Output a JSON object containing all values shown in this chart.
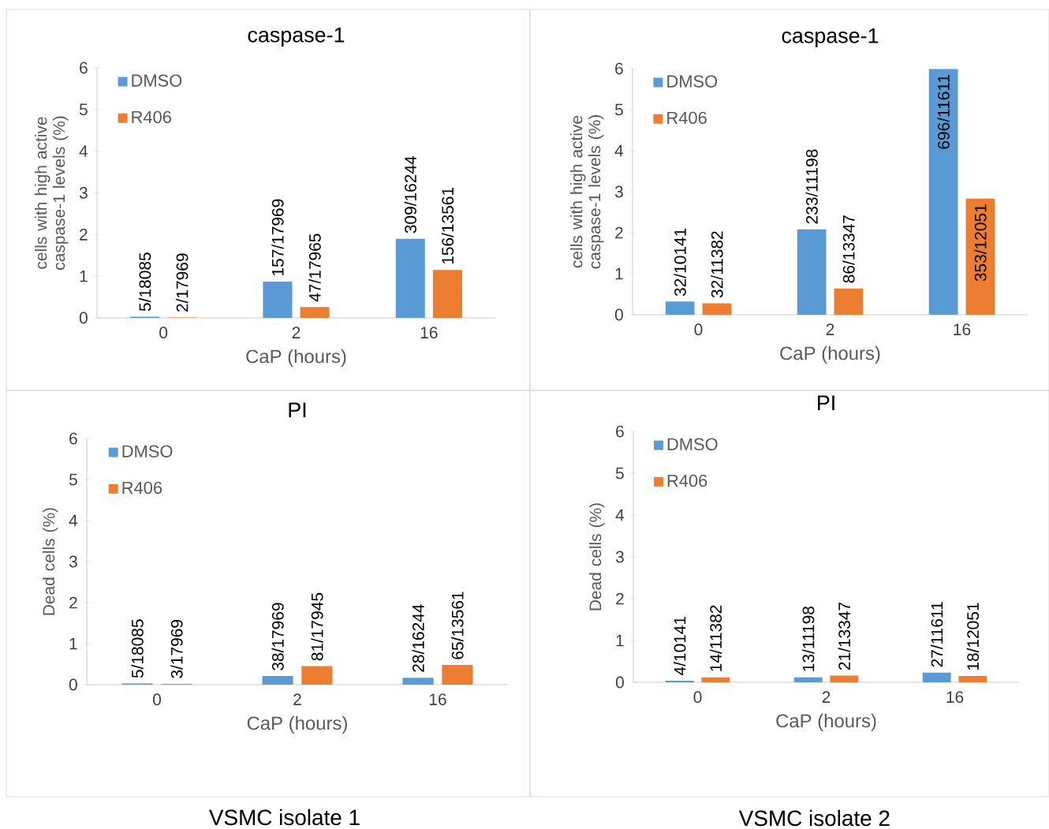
{
  "chart_data": [
    {
      "type": "bar",
      "title": "caspase-1",
      "xlabel": "CaP (hours)",
      "ylabel": "cells with high active caspase-1 levels (%)",
      "categories": [
        "0",
        "2",
        "16"
      ],
      "ylim": [
        0,
        6
      ],
      "yticks": [
        0,
        1,
        2,
        3,
        4,
        5,
        6
      ],
      "legend": "top left",
      "series": [
        {
          "name": "DMSO",
          "color": "#5b9bd5",
          "values": [
            0.03,
            0.87,
            1.9
          ],
          "value_labels": [
            "5/18085",
            "157/17969",
            "309/16244"
          ]
        },
        {
          "name": "R406",
          "color": "#ed7d31",
          "values": [
            0.01,
            0.26,
            1.15
          ],
          "value_labels": [
            "2/17969",
            "47/17965",
            "156/13561"
          ]
        }
      ]
    },
    {
      "type": "bar",
      "title": "caspase-1",
      "xlabel": "CaP (hours)",
      "ylabel": "cells with high active caspase-1 levels (%)",
      "categories": [
        "0",
        "2",
        "16"
      ],
      "ylim": [
        0,
        6
      ],
      "yticks": [
        0,
        1,
        2,
        3,
        4,
        5,
        6
      ],
      "legend": "top left",
      "series": [
        {
          "name": "DMSO",
          "color": "#5b9bd5",
          "values": [
            0.32,
            2.08,
            5.99
          ],
          "value_labels": [
            "32/10141",
            "233/11198",
            "696/11611"
          ]
        },
        {
          "name": "R406",
          "color": "#ed7d31",
          "values": [
            0.28,
            0.64,
            2.83
          ],
          "value_labels": [
            "32/11382",
            "86/13347",
            "353/12051"
          ]
        }
      ]
    },
    {
      "type": "bar",
      "title": "PI",
      "xlabel": "CaP (hours)",
      "ylabel": "Dead cells (%)",
      "categories": [
        "0",
        "2",
        "16"
      ],
      "ylim": [
        0,
        6
      ],
      "yticks": [
        0,
        1,
        2,
        3,
        4,
        5,
        6
      ],
      "legend": "top left",
      "annotations": [
        "VSMC isolate 1"
      ],
      "series": [
        {
          "name": "DMSO",
          "color": "#5b9bd5",
          "values": [
            0.03,
            0.21,
            0.17
          ],
          "value_labels": [
            "5/18085",
            "38/17969",
            "28/16244"
          ]
        },
        {
          "name": "R406",
          "color": "#ed7d31",
          "values": [
            0.02,
            0.45,
            0.48
          ],
          "value_labels": [
            "3/17969",
            "81/17945",
            "65/13561"
          ]
        }
      ]
    },
    {
      "type": "bar",
      "title": "PI",
      "xlabel": "CaP (hours)",
      "ylabel": "Dead cells  (%)",
      "categories": [
        "0",
        "2",
        "16"
      ],
      "ylim": [
        0,
        6
      ],
      "yticks": [
        0,
        1,
        2,
        3,
        4,
        5,
        6
      ],
      "legend": "top left",
      "annotations": [
        "VSMC isolate 2"
      ],
      "series": [
        {
          "name": "DMSO",
          "color": "#5b9bd5",
          "values": [
            0.04,
            0.12,
            0.23
          ],
          "value_labels": [
            "4/10141",
            "13/11198",
            "27/11611"
          ]
        },
        {
          "name": "R406",
          "color": "#ed7d31",
          "values": [
            0.12,
            0.16,
            0.15
          ],
          "value_labels": [
            "14/11382",
            "21/13347",
            "18/12051"
          ]
        }
      ]
    }
  ]
}
